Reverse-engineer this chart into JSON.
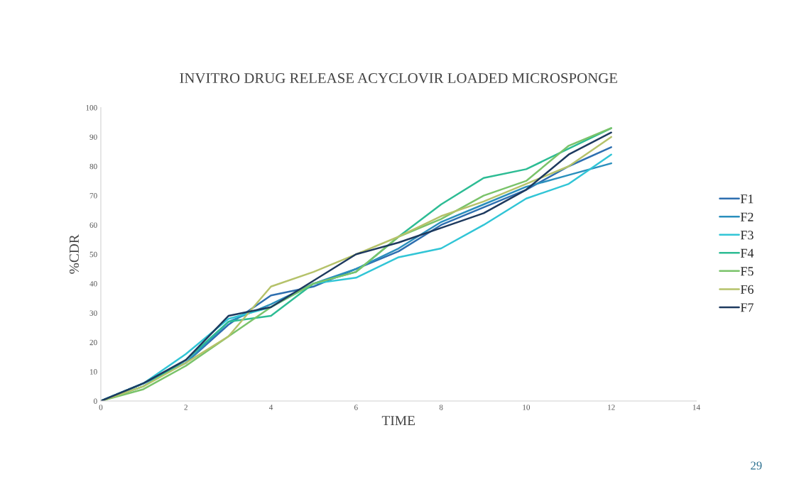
{
  "chart_data": {
    "type": "line",
    "title": "INVITRO DRUG RELEASE ACYCLOVIR LOADED MICROSPONGE",
    "xlabel": "TIME",
    "ylabel": "%CDR",
    "x": [
      0,
      1,
      2,
      3,
      4,
      5,
      6,
      7,
      8,
      9,
      10,
      11,
      12
    ],
    "series": [
      {
        "name": "F1",
        "color": "#2e6fb0",
        "values": [
          0,
          6,
          13,
          26,
          36,
          39,
          45,
          51,
          60,
          66,
          72,
          80,
          86.5
        ]
      },
      {
        "name": "F2",
        "color": "#2a8fbd",
        "values": [
          0,
          6,
          13,
          27,
          33,
          40,
          45,
          52,
          61,
          67,
          73,
          77,
          81
        ]
      },
      {
        "name": "F3",
        "color": "#31c5d6",
        "values": [
          0,
          6,
          16,
          28,
          32,
          40,
          42,
          49,
          52,
          60,
          69,
          74,
          84
        ]
      },
      {
        "name": "F4",
        "color": "#2dbc94",
        "values": [
          0,
          5,
          14,
          27,
          29,
          40,
          44,
          56,
          67,
          76,
          79,
          86,
          93
        ]
      },
      {
        "name": "F5",
        "color": "#7ac36a",
        "values": [
          0,
          4,
          12,
          22,
          32,
          40,
          44,
          56,
          62,
          70,
          75,
          87,
          93
        ]
      },
      {
        "name": "F6",
        "color": "#b5c26a",
        "values": [
          0,
          5,
          13,
          22,
          39,
          44,
          50,
          56,
          63,
          68,
          74,
          80,
          90
        ]
      },
      {
        "name": "F7",
        "color": "#1e3a5f",
        "values": [
          0,
          6,
          14,
          29,
          32,
          41,
          50,
          54,
          59,
          64,
          72,
          84,
          91.5
        ]
      }
    ],
    "xlim": [
      0,
      14
    ],
    "xticks": [
      0,
      2,
      4,
      6,
      8,
      10,
      12,
      14
    ],
    "ylim": [
      0,
      100
    ],
    "yticks": [
      0,
      10,
      20,
      30,
      40,
      50,
      60,
      70,
      80,
      90,
      100
    ],
    "grid": false,
    "legend": "right",
    "marker": "none",
    "line_style": "solid",
    "annotations": [
      "29"
    ]
  }
}
